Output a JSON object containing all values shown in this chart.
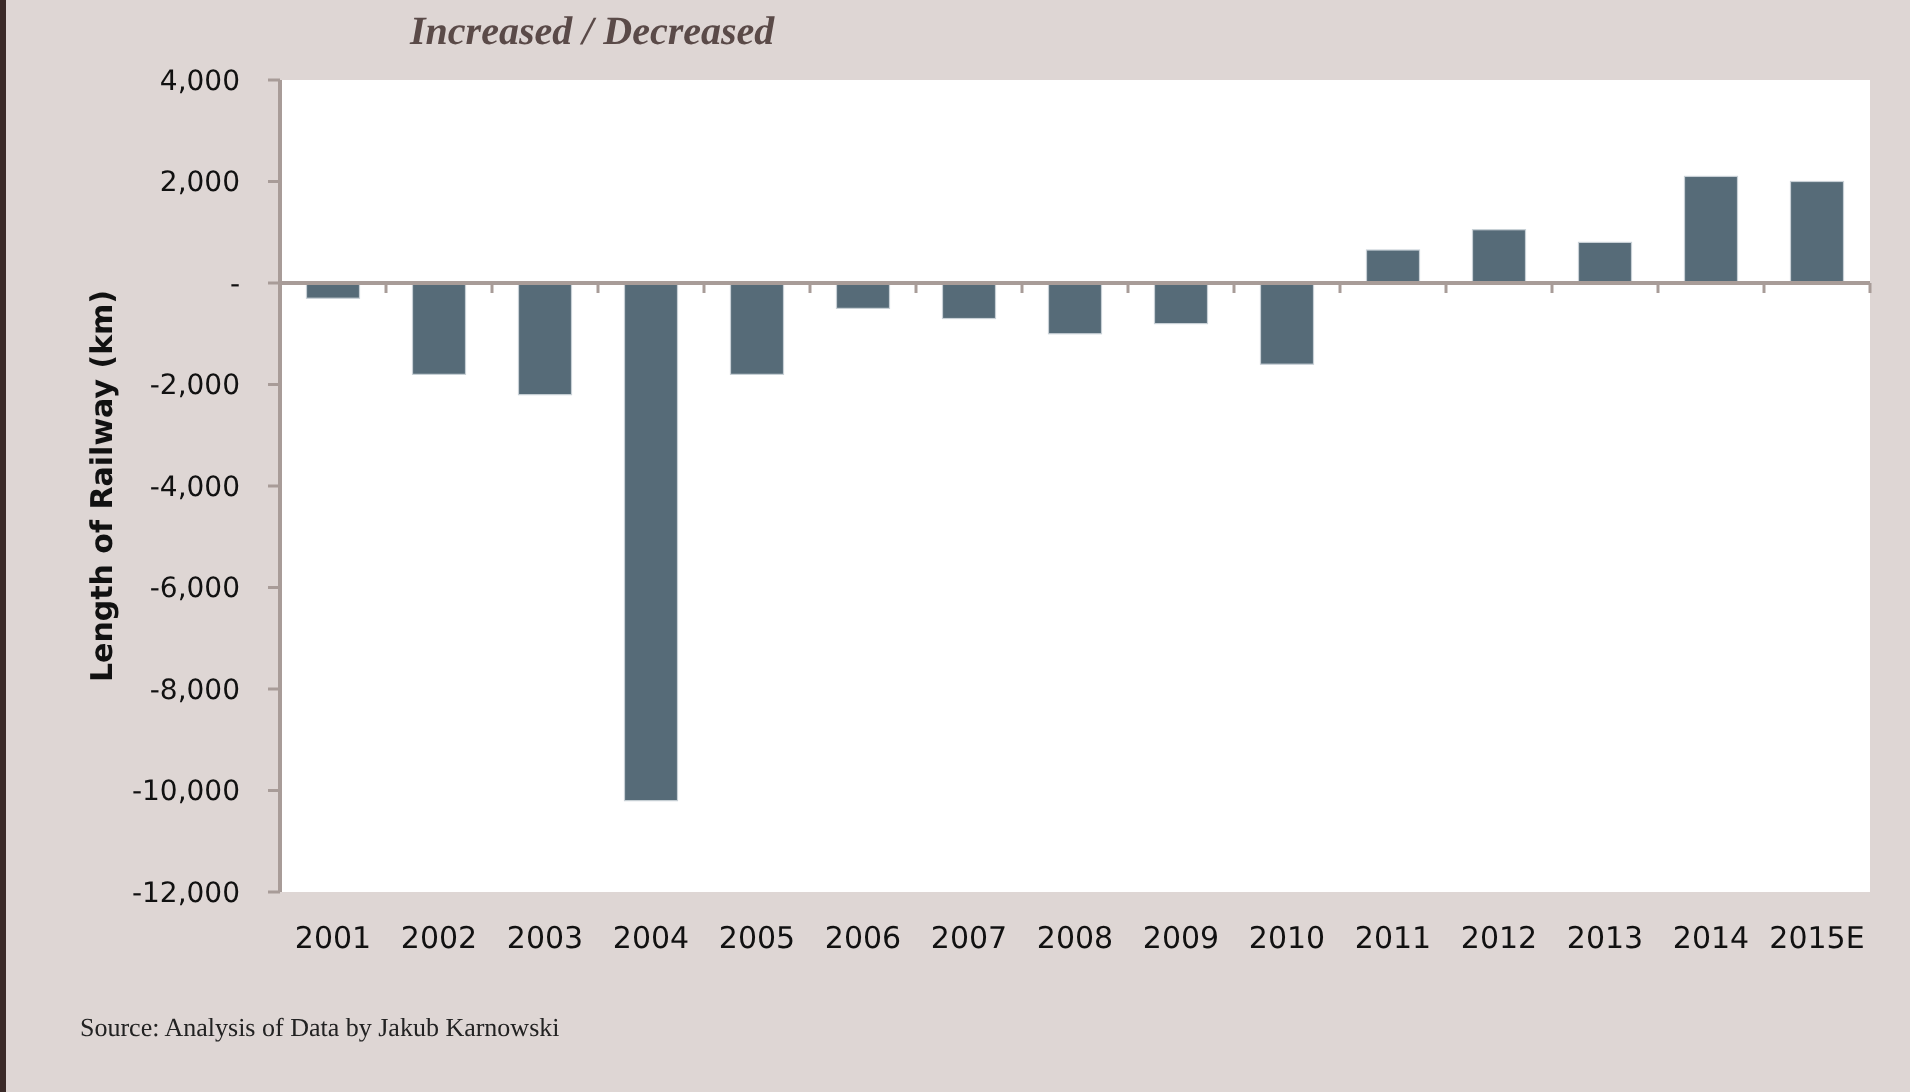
{
  "chart_data": {
    "type": "bar",
    "title": "Increased / Decreased",
    "ylabel": "Length of Railway (km)",
    "categories": [
      "2001",
      "2002",
      "2003",
      "2004",
      "2005",
      "2006",
      "2007",
      "2008",
      "2009",
      "2010",
      "2011",
      "2012",
      "2013",
      "2014",
      "2015E"
    ],
    "values": [
      -300,
      -1800,
      -2200,
      -10200,
      -1800,
      -500,
      -700,
      -1000,
      -800,
      -1600,
      650,
      1050,
      800,
      2100,
      2000
    ],
    "color": "#566b78",
    "ylim": [
      -12000,
      4000
    ],
    "yticks": [
      {
        "value": -12000,
        "label": "-12,000"
      },
      {
        "value": -10000,
        "label": "-10,000"
      },
      {
        "value": -8000,
        "label": "-8,000"
      },
      {
        "value": -6000,
        "label": "-6,000"
      },
      {
        "value": -4000,
        "label": "-4,000"
      },
      {
        "value": -2000,
        "label": "-2,000"
      },
      {
        "value": 0,
        "label": "-"
      },
      {
        "value": 2000,
        "label": "2,000"
      },
      {
        "value": 4000,
        "label": "4,000"
      }
    ],
    "annotations": [
      "Source:  Analysis of Data by Jakub Karnowski"
    ]
  }
}
